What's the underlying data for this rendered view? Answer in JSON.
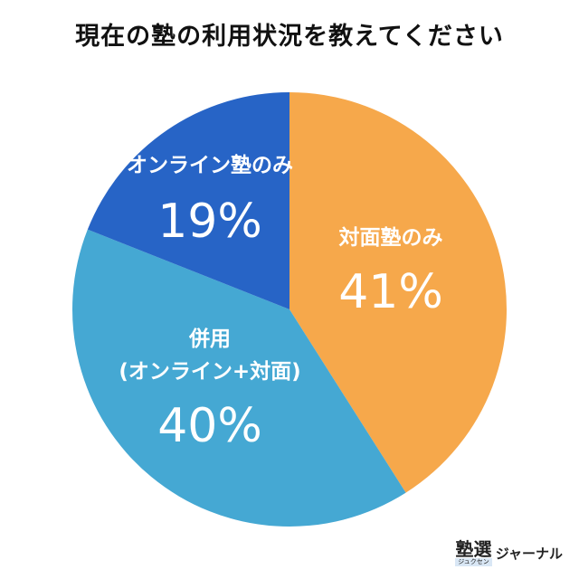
{
  "title": "現在の塾の利用状況を教えてください",
  "chart_data": {
    "type": "pie",
    "title": "現在の塾の利用状況を教えてください",
    "slices": [
      {
        "name_lines": [
          "対面塾のみ"
        ],
        "value": 41,
        "value_label": "41%",
        "color": "#F6A84B"
      },
      {
        "name_lines": [
          "併用",
          "(オンライン+対面)"
        ],
        "value": 40,
        "value_label": "40%",
        "color": "#45A8D3"
      },
      {
        "name_lines": [
          "オンライン塾のみ"
        ],
        "value": 19,
        "value_label": "19%",
        "color": "#2764C6"
      }
    ],
    "start_angle": "top",
    "direction": "clockwise"
  },
  "logo": {
    "kanji": "塾選",
    "kana": "ジュクセン",
    "text": "ジャーナル"
  }
}
